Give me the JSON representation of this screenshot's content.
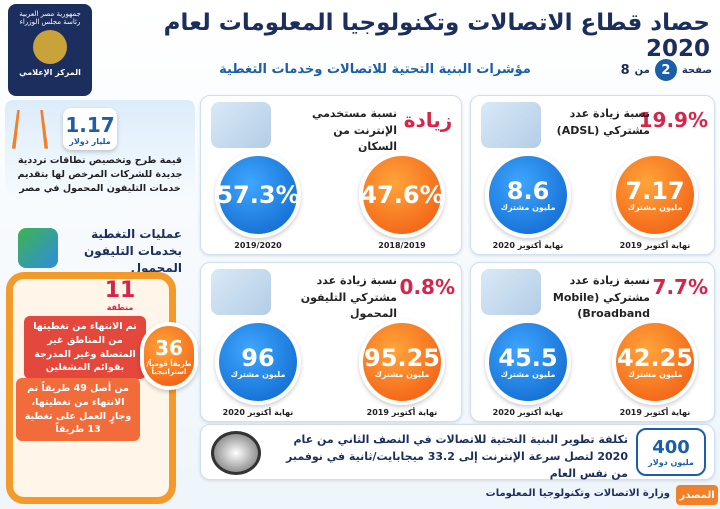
{
  "header": {
    "title": "حصاد قطاع الاتصالات وتكنولوجيا المعلومات لعام 2020",
    "subtitle": "مؤشرات البنية التحتية للاتصالات وخدمات التغطية",
    "page_word": "صفحة",
    "page_number": "2",
    "of_word": "من",
    "page_total": "8",
    "logo_lines": [
      "جمهورية مصر العربية",
      "رئاسة مجلس الوزراء",
      "المركز الإعلامي"
    ]
  },
  "panels": [
    {
      "change": "19.9%",
      "label": "نسبة زيادة عدد مشتركي (ADSL)",
      "items": [
        {
          "value": "8.6",
          "unit": "مليون مشترك",
          "period": "نهاية أكتوبر 2020"
        },
        {
          "value": "7.17",
          "unit": "مليون مشترك",
          "period": "نهاية أكتوبر 2019"
        }
      ]
    },
    {
      "change": "زيادة",
      "label": "نسبة مستخدمي الإنترنت من السكان",
      "items": [
        {
          "value": "57.3%",
          "period": "2019/2020"
        },
        {
          "value": "47.6%",
          "period": "2018/2019"
        }
      ]
    },
    {
      "change": "7.7%",
      "label": "نسبة زيادة عدد مشتركي (Mobile Broadband)",
      "items": [
        {
          "value": "45.5",
          "unit": "مليون مشترك",
          "period": "نهاية أكتوبر 2020"
        },
        {
          "value": "42.25",
          "unit": "مليون مشترك",
          "period": "نهاية أكتوبر 2019"
        }
      ]
    },
    {
      "change": "0.8%",
      "label": "نسبة زيادة عدد مشتركي التليفون المحمول",
      "items": [
        {
          "value": "96",
          "unit": "مليون مشترك",
          "period": "نهاية أكتوبر 2020"
        },
        {
          "value": "95.25",
          "unit": "مليون مشترك",
          "period": "نهاية أكتوبر 2019"
        }
      ]
    }
  ],
  "spectrum": {
    "value": "1.17",
    "unit": "مليار دولار",
    "text": "قيمة طرح وتخصيص نطاقات ترددية جديدة للشركات المرخص لها بتقديم خدمات التليفون المحمول في مصر"
  },
  "coverage": {
    "title": "عمليات التغطية بخدمات التليفون المحمول",
    "areas_value": "11",
    "areas_unit": "منطقة",
    "areas_text": "تم الانتهاء من تغطيتها من المناطق غير المتصلة وغير المدرجة بقوائم المشغلين",
    "roads_value": "36",
    "roads_unit": "طريقاً قومياً/استراتيجياً",
    "roads_text": "من أصل 49 طريقاً تم الانتهاء من تغطيتها، وجارٍ العمل على تغطية 13 طريقاً"
  },
  "investment": {
    "value": "400",
    "unit": "مليون دولار",
    "text": "تكلفة تطوير البنية التحتية للاتصالات في النصف الثاني من عام 2020 لتصل سرعة الإنترنت إلى 33.2 ميجابايت/ثانية في نوفمبر من نفس العام"
  },
  "footer": {
    "source_label": "المصدر",
    "source": "وزارة الاتصالات وتكنولوجيا المعلومات"
  }
}
